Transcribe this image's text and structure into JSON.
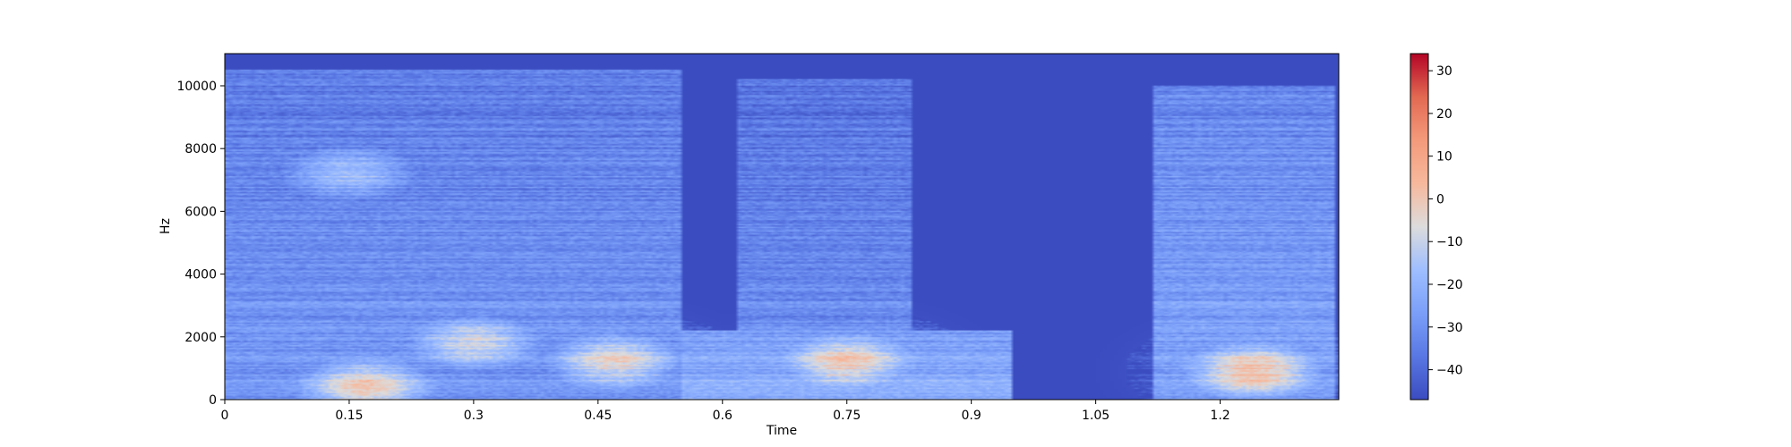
{
  "chart_data": {
    "type": "heatmap",
    "title": "",
    "xlabel": "Time",
    "ylabel": "Hz",
    "xlim": [
      0,
      1.343
    ],
    "ylim": [
      0,
      11025
    ],
    "x_ticks": [
      0,
      0.15,
      0.3,
      0.45,
      0.6,
      0.75,
      0.9,
      1.05,
      1.2
    ],
    "x_tick_labels": [
      "0",
      "0.15",
      "0.3",
      "0.45",
      "0.6",
      "0.75",
      "0.9",
      "1.05",
      "1.2"
    ],
    "y_ticks": [
      0,
      2000,
      4000,
      6000,
      8000,
      10000
    ],
    "y_tick_labels": [
      "0",
      "2000",
      "4000",
      "6000",
      "8000",
      "10000"
    ],
    "colorbar": {
      "colormap": "coolwarm",
      "range": [
        -47,
        34
      ],
      "ticks": [
        -40,
        -30,
        -20,
        -10,
        0,
        10,
        20,
        30
      ],
      "tick_labels": [
        "−40",
        "−30",
        "−20",
        "−10",
        "0",
        "10",
        "20",
        "30"
      ]
    },
    "floor_db": -47,
    "segments": [
      {
        "t": [
          0.0,
          0.55
        ],
        "f_max": 10500,
        "level_db": -28
      },
      {
        "t": [
          0.62,
          0.83
        ],
        "f_max": 10200,
        "level_db": -30
      },
      {
        "t": [
          0.55,
          0.95
        ],
        "f_max": 2200,
        "level_db": -20
      },
      {
        "t": [
          1.12,
          1.34
        ],
        "f_max": 10000,
        "level_db": -25
      }
    ],
    "peaks": [
      {
        "t": 0.3,
        "f": 1800,
        "db": 5
      },
      {
        "t": 0.15,
        "f": 7200,
        "db": -5
      },
      {
        "t": 0.47,
        "f": 1200,
        "db": 12
      },
      {
        "t": 0.75,
        "f": 1200,
        "db": 15
      },
      {
        "t": 1.24,
        "f": 900,
        "db": 22
      },
      {
        "t": 0.17,
        "f": 400,
        "db": 18
      }
    ]
  }
}
